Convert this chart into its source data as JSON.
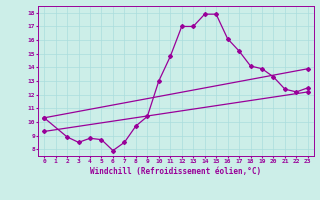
{
  "xlabel": "Windchill (Refroidissement éolien,°C)",
  "bg_color": "#cceee8",
  "line_color": "#990099",
  "grid_color": "#aadddd",
  "xlim": [
    -0.5,
    23.5
  ],
  "ylim": [
    7.5,
    18.5
  ],
  "xticks": [
    0,
    1,
    2,
    3,
    4,
    5,
    6,
    7,
    8,
    9,
    10,
    11,
    12,
    13,
    14,
    15,
    16,
    17,
    18,
    19,
    20,
    21,
    22,
    23
  ],
  "yticks": [
    8,
    9,
    10,
    11,
    12,
    13,
    14,
    15,
    16,
    17,
    18
  ],
  "curve1_x": [
    0,
    2,
    3,
    4,
    5,
    6,
    7,
    8,
    9,
    10,
    11,
    12,
    13,
    14,
    15,
    16,
    17,
    18,
    19,
    20,
    21,
    22,
    23
  ],
  "curve1_y": [
    10.3,
    8.9,
    8.5,
    8.8,
    8.7,
    7.9,
    8.5,
    9.7,
    10.4,
    13.0,
    14.8,
    17.0,
    17.0,
    17.9,
    17.9,
    16.1,
    15.2,
    14.1,
    13.9,
    13.3,
    12.4,
    12.2,
    12.5
  ],
  "curve2_x": [
    0,
    23
  ],
  "curve2_y": [
    10.3,
    13.9
  ],
  "curve3_x": [
    0,
    23
  ],
  "curve3_y": [
    9.3,
    12.2
  ],
  "marker": "D",
  "markersize": 2.0,
  "linewidth": 0.9
}
